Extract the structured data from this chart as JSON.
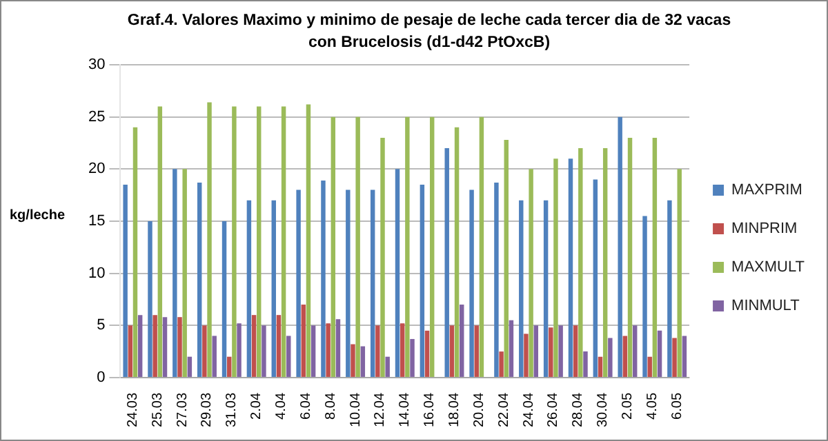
{
  "chart_data": {
    "type": "bar",
    "title": "Graf.4. Valores Maximo y minimo de pesaje de leche cada tercer dia de 32 vacas con Brucelosis (d1-d42 PtOxcB)",
    "ylabel": "kg/leche",
    "categories": [
      "24.03",
      "25.03",
      "27.03",
      "29.03",
      "31.03",
      "2.04",
      "4.04",
      "6.04",
      "8.04",
      "10.04",
      "12.04",
      "14.04",
      "16.04",
      "18.04",
      "20.04",
      "22.04",
      "24.04",
      "26.04",
      "28.04",
      "30.04",
      "2.05",
      "4.05",
      "6.05"
    ],
    "series": [
      {
        "name": "MAXPRIM",
        "color": "#4f81bd",
        "values": [
          18.5,
          15,
          20,
          18.7,
          15,
          17,
          17,
          18,
          18.9,
          18,
          18,
          20,
          18.5,
          22,
          18,
          18.7,
          17,
          17,
          21,
          19,
          25,
          15.5,
          17
        ]
      },
      {
        "name": "MINPRIM",
        "color": "#c0504d",
        "values": [
          5,
          6,
          5.8,
          5,
          2,
          6,
          6,
          7,
          5.2,
          3.2,
          5,
          5.2,
          4.5,
          5,
          5,
          2.5,
          4.2,
          4.8,
          5,
          2,
          4,
          2,
          3.8
        ]
      },
      {
        "name": "MAXMULT",
        "color": "#9bbb59",
        "values": [
          24,
          26,
          20,
          26.4,
          26,
          26,
          26,
          26.2,
          25,
          25,
          23,
          25,
          25,
          24,
          25,
          22.8,
          20,
          21,
          22,
          22,
          23,
          23,
          20
        ]
      },
      {
        "name": "MINMULT",
        "color": "#8064a2",
        "values": [
          6,
          5.8,
          2,
          4,
          5.2,
          5,
          4,
          5,
          5.6,
          3,
          2,
          3.7,
          null,
          7,
          null,
          5.5,
          5,
          5,
          2.5,
          3.8,
          5,
          4.5,
          4
        ]
      }
    ],
    "ylim": [
      0,
      30
    ],
    "yticks": [
      0,
      5,
      10,
      15,
      20,
      25,
      30
    ],
    "grid": "y",
    "legend": "right"
  }
}
